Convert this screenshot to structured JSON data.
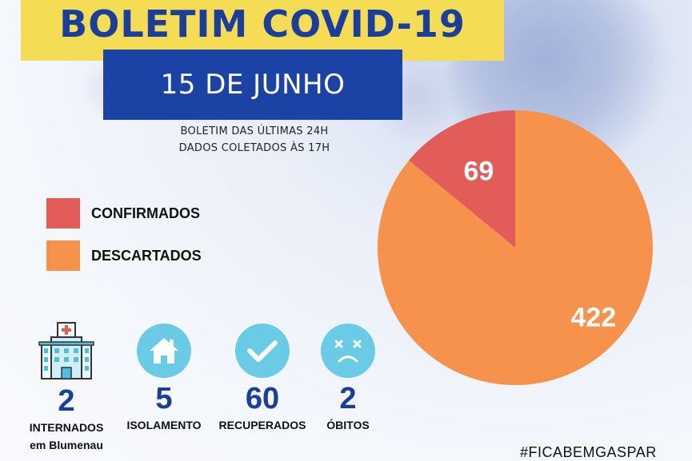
{
  "title": "BOLETIM COVID-19",
  "date": "15 DE JUNHO",
  "subtitle_line1": "BOLETIM DAS ÚLTIMAS 24H",
  "subtitle_line2": "DADOS COLETADOS ÀS  17H",
  "colors": {
    "confirmados": "#e35d58",
    "descartados": "#f6924b",
    "title_bg": "#f5dc55",
    "date_bg": "#1b43a6",
    "numbers": "#1a3e9c",
    "icon_bg": "#69cbe6"
  },
  "chart_data": {
    "type": "pie",
    "categories": [
      "CONFIRMADOS",
      "DESCARTADOS"
    ],
    "values": [
      69,
      422
    ],
    "data_labels": [
      "69",
      "422"
    ],
    "legend_position": "left"
  },
  "legend": {
    "items": [
      {
        "label": "CONFIRMADOS"
      },
      {
        "label": "DESCARTADOS"
      }
    ]
  },
  "stats": [
    {
      "icon": "hospital-icon",
      "value": "2",
      "caption_line1": "INTERNADOS",
      "caption_line2": "em Blumenau"
    },
    {
      "icon": "house-icon",
      "value": "5",
      "caption_line1": "ISOLAMENTO"
    },
    {
      "icon": "check-icon",
      "value": "60",
      "caption_line1": "RECUPERADOS"
    },
    {
      "icon": "sad-face-icon",
      "value": "2",
      "caption_line1": "ÓBITOS"
    }
  ],
  "hashtag": "#FICABEMGASPAR"
}
